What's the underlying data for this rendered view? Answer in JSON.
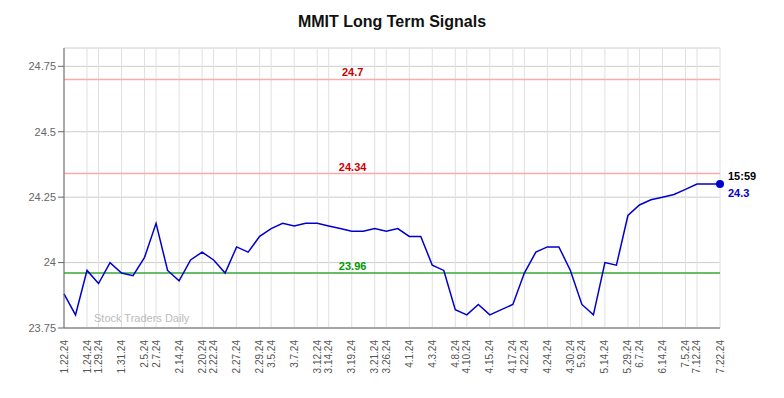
{
  "chart_data": {
    "type": "line",
    "title": "MMIT Long Term Signals",
    "categories": [
      "1.22.24",
      null,
      "1.24.24",
      "1.29.24",
      null,
      "1.31.24",
      null,
      "2.5.24",
      "2.7.24",
      null,
      "2.14.24",
      null,
      "2.20.24",
      "2.22.24",
      null,
      "2.27.24",
      null,
      "2.29.24",
      "3.5.24",
      null,
      "3.7.24",
      null,
      "3.12.24",
      "3.14.24",
      null,
      "3.19.24",
      null,
      "3.21.24",
      "3.26.24",
      null,
      "4.1.24",
      null,
      "4.3.24",
      null,
      "4.8.24",
      "4.10.24",
      null,
      "4.15.24",
      null,
      "4.17.24",
      "4.22.24",
      null,
      "4.24.24",
      null,
      "4.30.24",
      "5.9.24",
      null,
      "5.14.24",
      null,
      "5.29.24",
      "6.7.24",
      null,
      "6.14.24",
      null,
      "7.5.24",
      "7.12.24",
      null,
      "7.22.24"
    ],
    "values": [
      23.88,
      23.8,
      23.97,
      23.92,
      24.0,
      23.96,
      23.95,
      24.02,
      24.15,
      23.97,
      23.93,
      24.01,
      24.04,
      24.01,
      23.96,
      24.06,
      24.04,
      24.1,
      24.13,
      24.15,
      24.14,
      24.15,
      24.15,
      24.14,
      24.13,
      24.12,
      24.12,
      24.13,
      24.12,
      24.13,
      24.1,
      24.1,
      23.99,
      23.97,
      23.82,
      23.8,
      23.84,
      23.8,
      23.82,
      23.84,
      23.96,
      24.04,
      24.06,
      24.06,
      23.97,
      23.84,
      23.8,
      24.0,
      23.99,
      24.18,
      24.22,
      24.24,
      24.25,
      24.26,
      24.28,
      24.3,
      24.3,
      24.3
    ],
    "color": "#0000cc",
    "ylim": [
      23.75,
      24.82
    ],
    "yticks": [
      23.75,
      24,
      24.25,
      24.5,
      24.75
    ],
    "grid": true,
    "hlines": [
      {
        "value": 24.7,
        "label": "24.7",
        "color": "#ffaaaa",
        "label_color": "#cc0000"
      },
      {
        "value": 24.34,
        "label": "24.34",
        "color": "#ffaaaa",
        "label_color": "#cc0000"
      },
      {
        "value": 23.96,
        "label": "23.96",
        "color": "#33aa33",
        "label_color": "#009900"
      }
    ],
    "last_point": {
      "time": "15:59",
      "price": "24.3"
    },
    "watermark": "Stock Traders Daily"
  }
}
